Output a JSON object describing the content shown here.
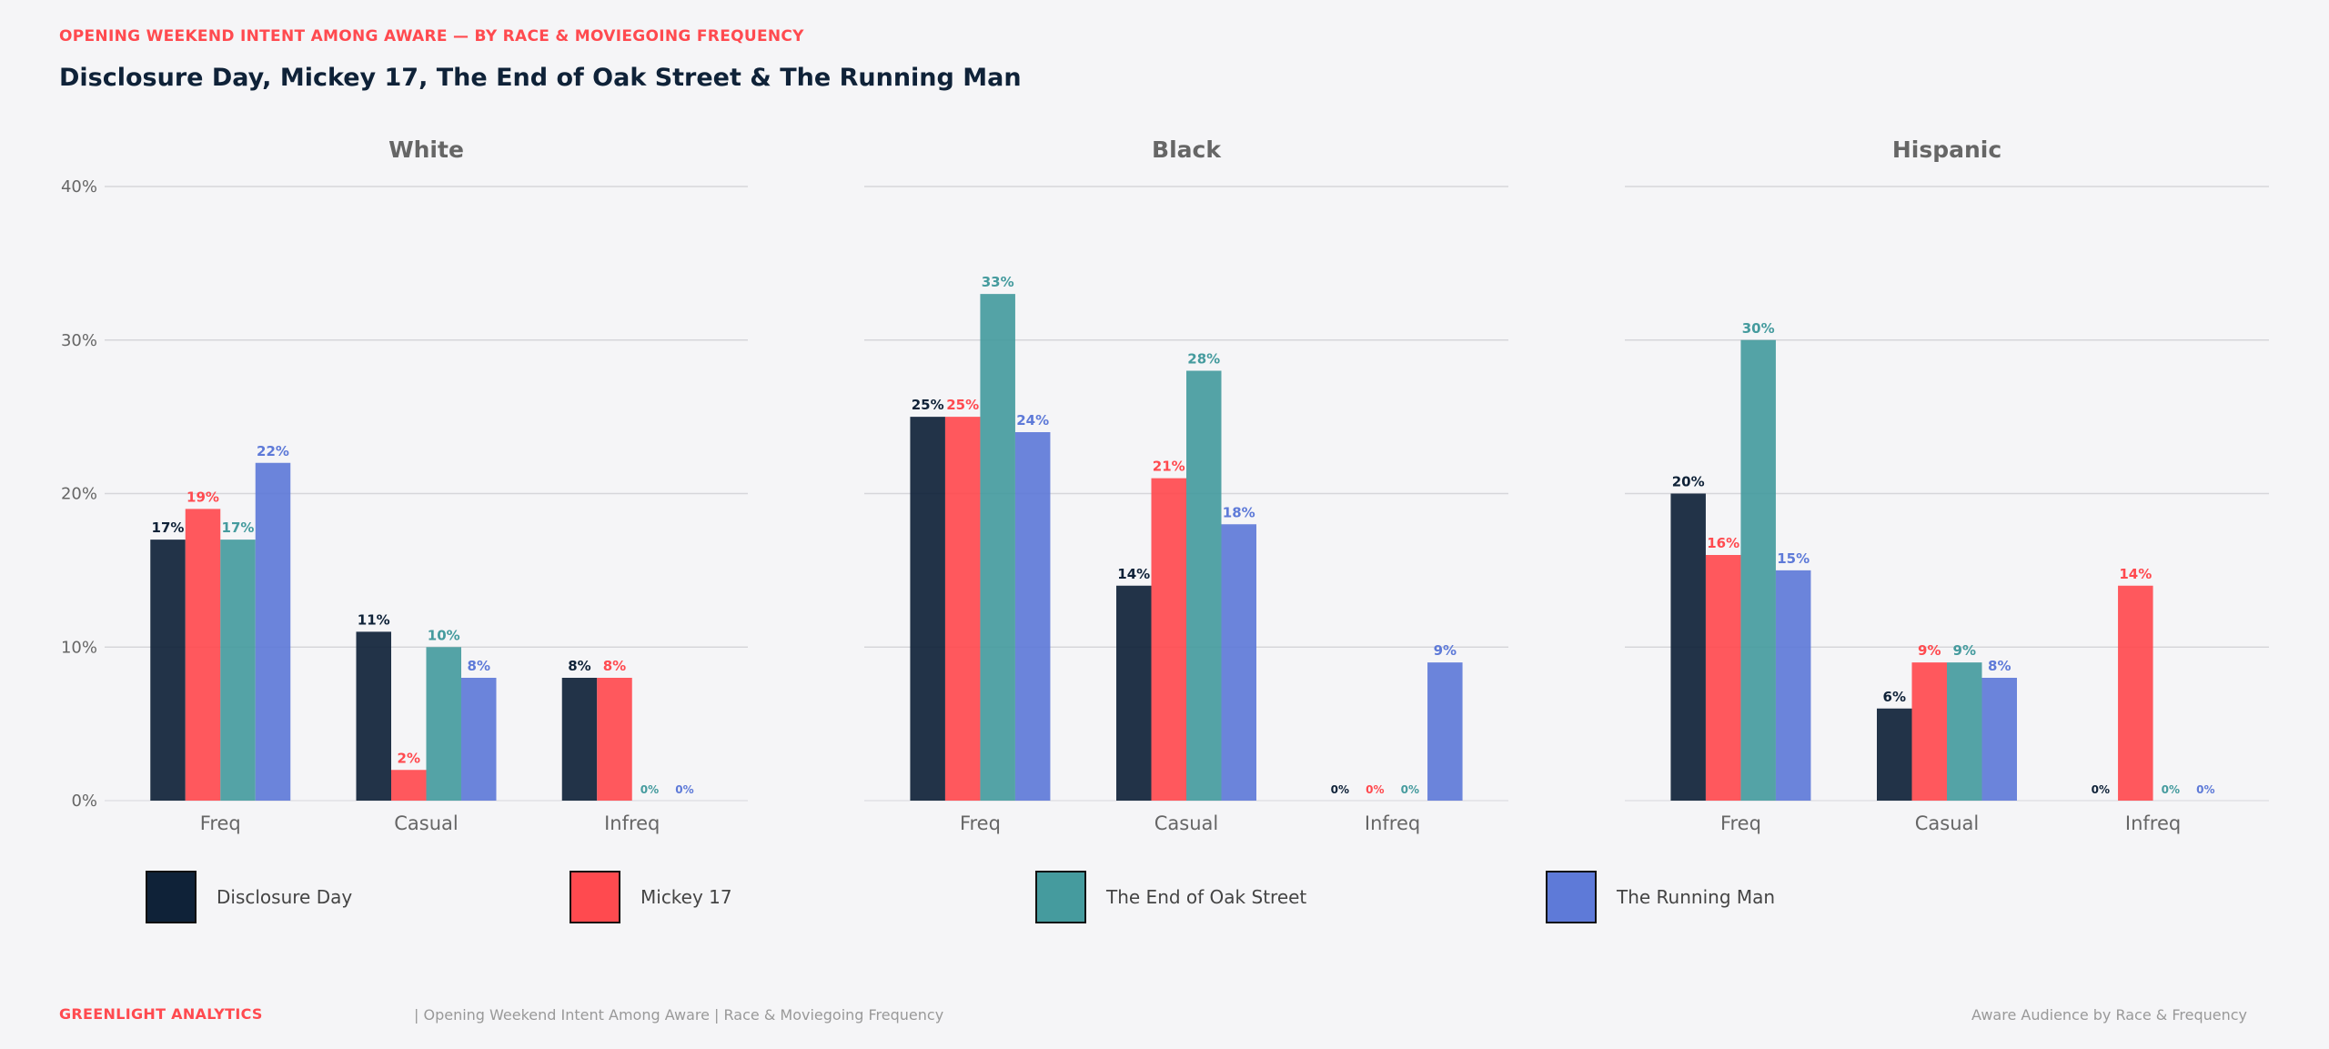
{
  "header": {
    "kicker": "OPENING WEEKEND INTENT AMONG AWARE — BY RACE & MOVIEGOING FREQUENCY",
    "title": "Disclosure Day, Mickey 17, The End of Oak Street & The Running Man"
  },
  "footer": {
    "brand": "GREENLIGHT ANALYTICS",
    "caption": "|  Opening Weekend Intent Among Aware  |  Race & Moviegoing Frequency",
    "right": "Aware Audience by Race & Frequency"
  },
  "colors": {
    "Disclosure Day": "#0f2238",
    "Mickey 17": "#ff4a4f",
    "The End of Oak Street": "#459b9e",
    "The Running Man": "#5e7ad8"
  },
  "legend": [
    {
      "name": "Disclosure Day",
      "color": "#0f2238"
    },
    {
      "name": "Mickey 17",
      "color": "#ff4a4f"
    },
    {
      "name": "The End of Oak Street",
      "color": "#459b9e"
    },
    {
      "name": "The Running Man",
      "color": "#5e7ad8"
    }
  ],
  "chart_data": [
    {
      "type": "bar",
      "title": "White",
      "categories": [
        "Freq",
        "Casual",
        "Infreq"
      ],
      "ylim": [
        0,
        40
      ],
      "yticks": [
        "0%",
        "10%",
        "20%",
        "30%",
        "40%"
      ],
      "grid": true,
      "series": [
        {
          "name": "Disclosure Day",
          "values": [
            17,
            11,
            8
          ],
          "labels": [
            "17%",
            "11%",
            "8%"
          ]
        },
        {
          "name": "Mickey 17",
          "values": [
            19,
            2,
            8
          ],
          "labels": [
            "19%",
            "2%",
            "8%"
          ]
        },
        {
          "name": "The End of Oak Street",
          "values": [
            17,
            10,
            0
          ],
          "labels": [
            "17%",
            "10%",
            "0%"
          ]
        },
        {
          "name": "The Running Man",
          "values": [
            22,
            8,
            0
          ],
          "labels": [
            "22%",
            "8%",
            "0%"
          ]
        }
      ]
    },
    {
      "type": "bar",
      "title": "Black",
      "categories": [
        "Freq",
        "Casual",
        "Infreq"
      ],
      "ylim": [
        0,
        40
      ],
      "grid": true,
      "series": [
        {
          "name": "Disclosure Day",
          "values": [
            25,
            14,
            0
          ],
          "labels": [
            "25%",
            "14%",
            "0%"
          ]
        },
        {
          "name": "Mickey 17",
          "values": [
            25,
            21,
            0
          ],
          "labels": [
            "25%",
            "21%",
            "0%"
          ]
        },
        {
          "name": "The End of Oak Street",
          "values": [
            33,
            28,
            0
          ],
          "labels": [
            "33%",
            "28%",
            "0%"
          ]
        },
        {
          "name": "The Running Man",
          "values": [
            24,
            18,
            9
          ],
          "labels": [
            "24%",
            "18%",
            "9%"
          ]
        }
      ]
    },
    {
      "type": "bar",
      "title": "Hispanic",
      "categories": [
        "Freq",
        "Casual",
        "Infreq"
      ],
      "ylim": [
        0,
        40
      ],
      "grid": true,
      "series": [
        {
          "name": "Disclosure Day",
          "values": [
            20,
            6,
            0
          ],
          "labels": [
            "20%",
            "6%",
            "0%"
          ]
        },
        {
          "name": "Mickey 17",
          "values": [
            16,
            9,
            14
          ],
          "labels": [
            "16%",
            "9%",
            "14%"
          ]
        },
        {
          "name": "The End of Oak Street",
          "values": [
            30,
            9,
            0
          ],
          "labels": [
            "30%",
            "9%",
            "0%"
          ]
        },
        {
          "name": "The Running Man",
          "values": [
            15,
            8,
            0
          ],
          "labels": [
            "15%",
            "8%",
            "0%"
          ]
        }
      ]
    }
  ]
}
